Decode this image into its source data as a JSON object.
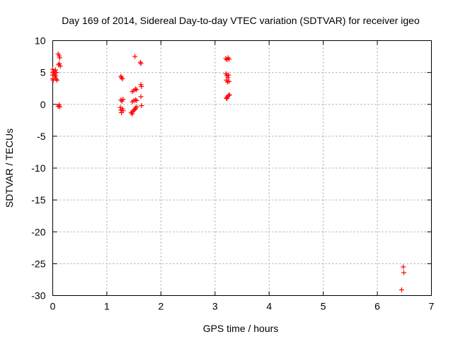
{
  "chart_data": {
    "type": "scatter",
    "title": "Day 169 of 2014, Sidereal Day-to-day VTEC variation (SDTVAR) for receiver igeo",
    "xlabel": "GPS time / hours",
    "ylabel": "SDTVAR / TECUs",
    "xlim": [
      0,
      7
    ],
    "ylim": [
      -30,
      10
    ],
    "xticks": [
      0,
      1,
      2,
      3,
      4,
      5,
      6,
      7
    ],
    "yticks": [
      10,
      5,
      0,
      -5,
      -10,
      -15,
      -20,
      -25,
      -30
    ],
    "grid": true,
    "marker": "+",
    "marker_color": "#ff0000",
    "series": [
      {
        "name": "SDTVAR",
        "points": [
          [
            0.0,
            5.5
          ],
          [
            0.0,
            5.0
          ],
          [
            0.0,
            4.6
          ],
          [
            0.0,
            4.0
          ],
          [
            0.01,
            3.8
          ],
          [
            0.02,
            5.2
          ],
          [
            0.03,
            4.8
          ],
          [
            0.04,
            4.3
          ],
          [
            0.05,
            5.4
          ],
          [
            0.06,
            4.0
          ],
          [
            0.07,
            5.0
          ],
          [
            0.08,
            3.8
          ],
          [
            0.05,
            4.5
          ],
          [
            0.1,
            7.9
          ],
          [
            0.12,
            7.6
          ],
          [
            0.13,
            7.3
          ],
          [
            0.12,
            6.4
          ],
          [
            0.14,
            6.0
          ],
          [
            0.11,
            6.2
          ],
          [
            0.12,
            -0.1
          ],
          [
            0.13,
            -0.4
          ],
          [
            0.1,
            -0.3
          ],
          [
            1.26,
            4.4
          ],
          [
            1.27,
            4.2
          ],
          [
            1.29,
            4.0
          ],
          [
            1.26,
            0.7
          ],
          [
            1.28,
            0.5
          ],
          [
            1.3,
            0.8
          ],
          [
            1.25,
            -0.5
          ],
          [
            1.26,
            -0.9
          ],
          [
            1.27,
            -1.3
          ],
          [
            1.29,
            -0.7
          ],
          [
            1.3,
            -1.0
          ],
          [
            1.47,
            2.0
          ],
          [
            1.5,
            2.2
          ],
          [
            1.53,
            2.4
          ],
          [
            1.55,
            2.3
          ],
          [
            1.47,
            0.4
          ],
          [
            1.5,
            0.6
          ],
          [
            1.53,
            0.7
          ],
          [
            1.55,
            0.6
          ],
          [
            1.45,
            -1.3
          ],
          [
            1.48,
            -1.1
          ],
          [
            1.5,
            -0.9
          ],
          [
            1.53,
            -0.6
          ],
          [
            1.55,
            -0.4
          ],
          [
            1.52,
            -0.8
          ],
          [
            1.47,
            -1.5
          ],
          [
            1.52,
            7.5
          ],
          [
            1.62,
            6.6
          ],
          [
            1.63,
            6.4
          ],
          [
            1.63,
            3.1
          ],
          [
            1.64,
            2.8
          ],
          [
            1.63,
            1.2
          ],
          [
            1.64,
            -0.2
          ],
          [
            3.2,
            7.2
          ],
          [
            3.22,
            7.0
          ],
          [
            3.24,
            7.3
          ],
          [
            3.26,
            7.1
          ],
          [
            3.2,
            4.8
          ],
          [
            3.22,
            4.5
          ],
          [
            3.24,
            4.2
          ],
          [
            3.25,
            4.6
          ],
          [
            3.21,
            3.8
          ],
          [
            3.23,
            3.5
          ],
          [
            3.26,
            3.6
          ],
          [
            3.21,
            1.0
          ],
          [
            3.23,
            1.2
          ],
          [
            3.25,
            1.4
          ],
          [
            3.27,
            1.5
          ],
          [
            3.22,
            0.9
          ],
          [
            6.48,
            -25.5
          ],
          [
            6.49,
            -26.4
          ],
          [
            6.45,
            -29.1
          ]
        ]
      }
    ]
  }
}
